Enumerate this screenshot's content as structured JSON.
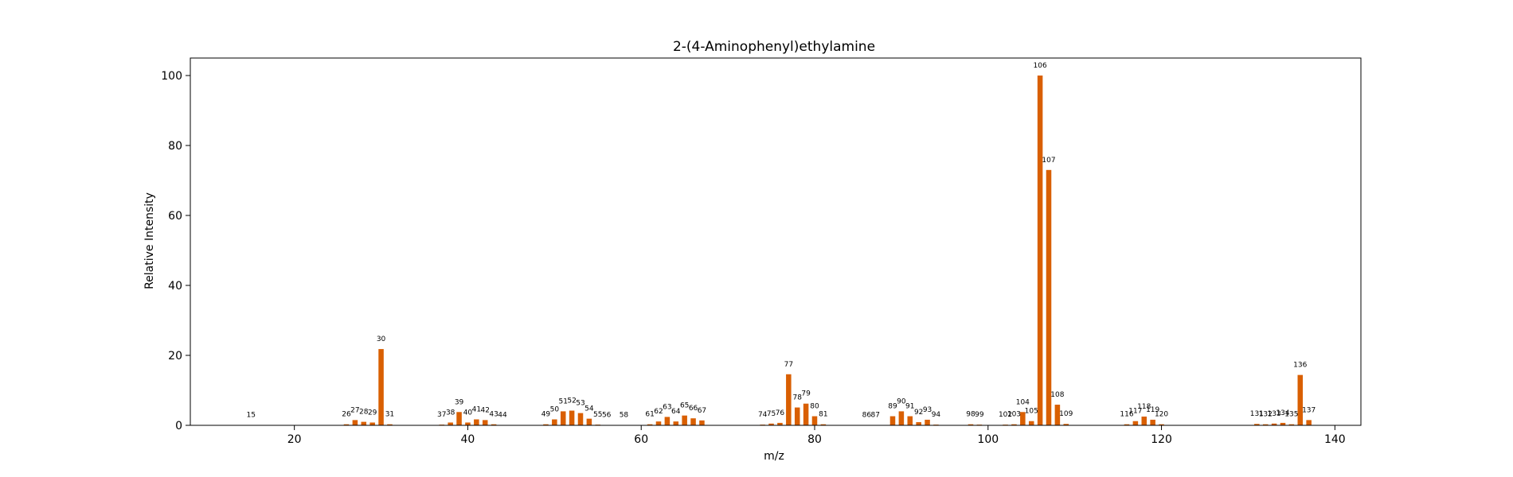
{
  "chart_data": {
    "type": "bar",
    "title": "2-(4-Aminophenyl)ethylamine",
    "xlabel": "m/z",
    "ylabel": "Relative Intensity",
    "xlim": [
      8,
      143
    ],
    "ylim": [
      0,
      105
    ],
    "xticks": [
      20,
      40,
      60,
      80,
      100,
      120,
      140
    ],
    "yticks": [
      0,
      20,
      40,
      60,
      80,
      100
    ],
    "bar_color": "#d95f02",
    "grid": false,
    "legend": "none",
    "x": [
      15,
      26,
      27,
      28,
      29,
      30,
      31,
      37,
      38,
      39,
      40,
      41,
      42,
      43,
      44,
      49,
      50,
      51,
      52,
      53,
      54,
      55,
      56,
      58,
      61,
      62,
      63,
      64,
      65,
      66,
      67,
      74,
      75,
      76,
      77,
      78,
      79,
      80,
      81,
      86,
      87,
      89,
      90,
      91,
      92,
      93,
      94,
      98,
      99,
      102,
      103,
      104,
      105,
      106,
      107,
      108,
      109,
      116,
      117,
      118,
      119,
      120,
      131,
      132,
      133,
      134,
      135,
      136,
      137
    ],
    "values": [
      0.1,
      0.3,
      1.5,
      1.0,
      0.8,
      21.8,
      0.3,
      0.2,
      0.8,
      3.8,
      0.8,
      1.7,
      1.5,
      0.3,
      0.1,
      0.3,
      1.7,
      4.0,
      4.2,
      3.5,
      1.9,
      0.2,
      0.1,
      0.1,
      0.3,
      1.1,
      2.4,
      1.1,
      2.8,
      2.0,
      1.4,
      0.2,
      0.5,
      0.7,
      14.6,
      5.1,
      6.2,
      2.6,
      0.3,
      0.1,
      0.1,
      2.6,
      4.0,
      2.6,
      0.9,
      1.6,
      0.2,
      0.3,
      0.2,
      0.2,
      0.3,
      3.8,
      1.2,
      100,
      73,
      5.9,
      0.4,
      0.3,
      1.2,
      2.5,
      1.6,
      0.3,
      0.4,
      0.3,
      0.5,
      0.7,
      0.3,
      14.4,
      1.5
    ]
  }
}
